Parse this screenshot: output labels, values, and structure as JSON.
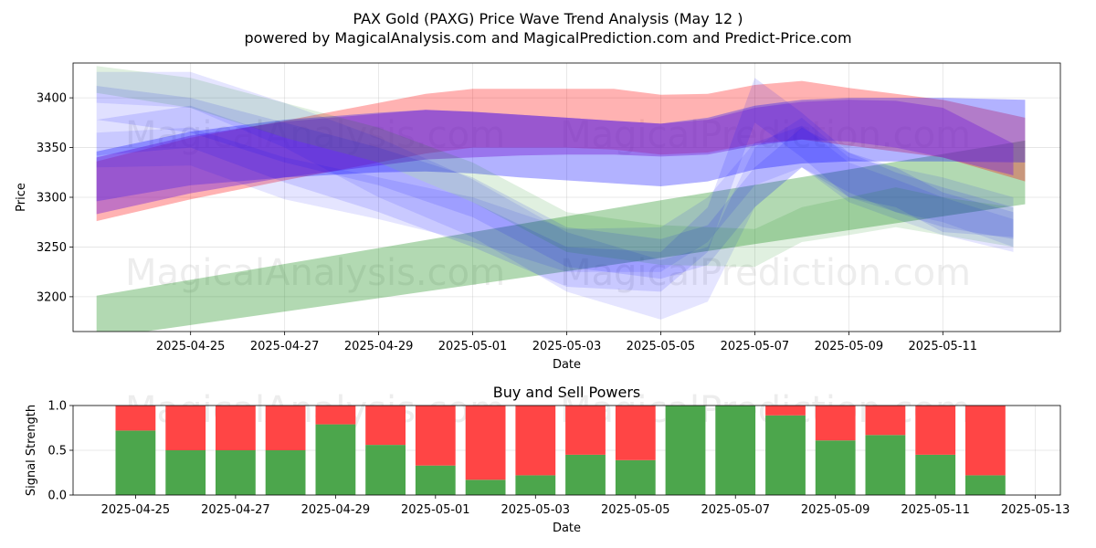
{
  "title_line1": "PAX Gold (PAXG) Price Wave Trend Analysis (May 12 )",
  "title_line2": "powered by MagicalAnalysis.com and MagicalPrediction.com and Predict-Price.com",
  "watermarks": [
    "MagicalAnalysis.com",
    "MagicalPrediction.com"
  ],
  "chart_data": [
    {
      "type": "area",
      "xlabel": "Date",
      "ylabel": "Price",
      "ylim": [
        3165,
        3435
      ],
      "xlim": [
        "2025-04-22T12:00",
        "2025-05-13T12:00"
      ],
      "yticks": [
        3200,
        3250,
        3300,
        3350,
        3400
      ],
      "xticks": [
        "2025-04-25",
        "2025-04-27",
        "2025-04-29",
        "2025-05-01",
        "2025-05-03",
        "2025-05-05",
        "2025-05-07",
        "2025-05-09",
        "2025-05-11"
      ],
      "grid": true,
      "colors": {
        "red": "#ff0000",
        "green": "#008000",
        "blue": "#0000ff",
        "purple": "#7a2bd6"
      },
      "bands": [
        {
          "color": "green",
          "opacity": 0.3,
          "x": [
            "2025-04-23",
            "2025-05-05",
            "2025-05-12T18:00"
          ],
          "upper": [
            3201,
            3297,
            3357
          ],
          "lower": [
            3158,
            3239,
            3293
          ]
        },
        {
          "color": "red",
          "opacity": 0.3,
          "x": [
            "2025-04-23",
            "2025-04-25",
            "2025-04-27",
            "2025-04-29",
            "2025-04-30",
            "2025-05-01",
            "2025-05-02",
            "2025-05-03",
            "2025-05-04",
            "2025-05-05",
            "2025-05-06",
            "2025-05-07",
            "2025-05-08",
            "2025-05-09",
            "2025-05-10",
            "2025-05-11",
            "2025-05-12T18:00"
          ],
          "upper": [
            3336,
            3360,
            3377,
            3395,
            3404,
            3409,
            3409,
            3409,
            3409,
            3403,
            3404,
            3413,
            3417,
            3410,
            3404,
            3398,
            3380
          ],
          "lower": [
            3276,
            3298,
            3317,
            3335,
            3344,
            3350,
            3350,
            3350,
            3348,
            3343,
            3345,
            3354,
            3358,
            3352,
            3346,
            3340,
            3316
          ]
        },
        {
          "color": "blue",
          "opacity": 0.3,
          "x": [
            "2025-04-23",
            "2025-04-25",
            "2025-04-27",
            "2025-04-29",
            "2025-04-30",
            "2025-05-01",
            "2025-05-02",
            "2025-05-03",
            "2025-05-04",
            "2025-05-05",
            "2025-05-06",
            "2025-05-07",
            "2025-05-08",
            "2025-05-09",
            "2025-05-10",
            "2025-05-11",
            "2025-05-12T18:00"
          ],
          "upper": [
            3346,
            3366,
            3378,
            3385,
            3388,
            3386,
            3383,
            3380,
            3377,
            3374,
            3380,
            3392,
            3398,
            3400,
            3400,
            3400,
            3398
          ],
          "lower": [
            3296,
            3312,
            3320,
            3325,
            3326,
            3324,
            3320,
            3317,
            3314,
            3311,
            3316,
            3328,
            3334,
            3336,
            3336,
            3336,
            3335
          ]
        },
        {
          "color": "purple",
          "opacity": 0.45,
          "x": [
            "2025-04-23",
            "2025-04-25",
            "2025-04-27",
            "2025-04-29",
            "2025-04-30",
            "2025-05-01",
            "2025-05-02",
            "2025-05-03",
            "2025-05-04",
            "2025-05-05",
            "2025-05-06",
            "2025-05-07",
            "2025-05-08",
            "2025-05-09",
            "2025-05-10",
            "2025-05-11",
            "2025-05-12T12:00"
          ],
          "upper": [
            3340,
            3362,
            3376,
            3384,
            3388,
            3386,
            3383,
            3380,
            3377,
            3374,
            3378,
            3390,
            3396,
            3398,
            3397,
            3390,
            3354
          ],
          "lower": [
            3283,
            3304,
            3320,
            3332,
            3338,
            3340,
            3342,
            3343,
            3343,
            3341,
            3343,
            3352,
            3358,
            3356,
            3350,
            3340,
            3322
          ]
        },
        {
          "color": "blue",
          "opacity": 0.1,
          "x": [
            "2025-04-23",
            "2025-04-25",
            "2025-04-27",
            "2025-04-29",
            "2025-05-01",
            "2025-05-03",
            "2025-05-05",
            "2025-05-06",
            "2025-05-07",
            "2025-05-08",
            "2025-05-09",
            "2025-05-10",
            "2025-05-11",
            "2025-05-12T12:00"
          ],
          "upper": [
            3426,
            3426,
            3395,
            3360,
            3318,
            3265,
            3237,
            3250,
            3350,
            3380,
            3340,
            3330,
            3320,
            3300
          ],
          "lower": [
            3395,
            3390,
            3350,
            3300,
            3260,
            3205,
            3177,
            3195,
            3290,
            3330,
            3300,
            3285,
            3275,
            3250
          ]
        },
        {
          "color": "blue",
          "opacity": 0.12,
          "x": [
            "2025-04-23",
            "2025-04-25",
            "2025-04-27",
            "2025-04-29",
            "2025-05-01",
            "2025-05-03",
            "2025-05-05",
            "2025-05-06",
            "2025-05-07",
            "2025-05-08",
            "2025-05-09",
            "2025-05-10",
            "2025-05-11",
            "2025-05-12T12:00"
          ],
          "upper": [
            3378,
            3392,
            3360,
            3335,
            3295,
            3250,
            3245,
            3290,
            3420,
            3385,
            3345,
            3330,
            3305,
            3285
          ],
          "lower": [
            3342,
            3350,
            3315,
            3285,
            3250,
            3210,
            3205,
            3245,
            3375,
            3340,
            3300,
            3290,
            3265,
            3260
          ]
        },
        {
          "color": "blue",
          "opacity": 0.12,
          "x": [
            "2025-04-23",
            "2025-04-25",
            "2025-04-27",
            "2025-04-29",
            "2025-05-01",
            "2025-05-03",
            "2025-05-05",
            "2025-05-06",
            "2025-05-07",
            "2025-05-08",
            "2025-05-09",
            "2025-05-10",
            "2025-05-11",
            "2025-05-12T12:00"
          ],
          "upper": [
            3412,
            3400,
            3375,
            3350,
            3320,
            3270,
            3258,
            3272,
            3330,
            3370,
            3345,
            3325,
            3310,
            3290
          ],
          "lower": [
            3378,
            3365,
            3335,
            3312,
            3280,
            3230,
            3218,
            3232,
            3290,
            3330,
            3305,
            3285,
            3270,
            3258
          ]
        },
        {
          "color": "blue",
          "opacity": 0.1,
          "x": [
            "2025-04-23",
            "2025-04-25",
            "2025-04-27",
            "2025-04-29",
            "2025-05-01",
            "2025-05-03",
            "2025-05-05",
            "2025-05-06",
            "2025-05-07",
            "2025-05-08",
            "2025-05-09",
            "2025-05-10",
            "2025-05-11",
            "2025-05-12T12:00"
          ],
          "upper": [
            3365,
            3370,
            3340,
            3320,
            3300,
            3268,
            3270,
            3300,
            3355,
            3372,
            3335,
            3318,
            3300,
            3278
          ],
          "lower": [
            3330,
            3332,
            3298,
            3278,
            3255,
            3225,
            3225,
            3255,
            3312,
            3330,
            3295,
            3278,
            3262,
            3245
          ]
        },
        {
          "color": "green",
          "opacity": 0.12,
          "x": [
            "2025-04-23",
            "2025-04-25",
            "2025-04-27",
            "2025-04-29",
            "2025-05-01",
            "2025-05-03",
            "2025-05-05",
            "2025-05-07",
            "2025-05-08",
            "2025-05-09",
            "2025-05-10",
            "2025-05-11",
            "2025-05-12T12:00"
          ],
          "upper": [
            3432,
            3420,
            3395,
            3370,
            3335,
            3285,
            3272,
            3268,
            3290,
            3300,
            3310,
            3300,
            3290
          ],
          "lower": [
            3405,
            3390,
            3360,
            3335,
            3295,
            3245,
            3232,
            3230,
            3255,
            3262,
            3270,
            3262,
            3250
          ]
        }
      ]
    },
    {
      "type": "bar",
      "stacked": true,
      "title": "Buy and Sell Powers",
      "xlabel": "Date",
      "ylabel": "Signal Strength",
      "ylim": [
        0,
        1
      ],
      "yticks": [
        "0.0",
        "0.5",
        "1.0"
      ],
      "xticks": [
        "2025-04-25",
        "2025-04-27",
        "2025-04-29",
        "2025-05-01",
        "2025-05-03",
        "2025-05-05",
        "2025-05-07",
        "2025-05-09",
        "2025-05-11",
        "2025-05-13"
      ],
      "xlim": [
        "2025-04-23T18:00",
        "2025-05-13T12:00"
      ],
      "grid": true,
      "colors": {
        "buy": "#4ca64c",
        "sell": "#ff4545"
      },
      "dates": [
        "2025-04-25",
        "2025-04-26",
        "2025-04-27",
        "2025-04-28",
        "2025-04-29",
        "2025-04-30",
        "2025-05-01",
        "2025-05-02",
        "2025-05-03",
        "2025-05-04",
        "2025-05-05",
        "2025-05-06",
        "2025-05-07",
        "2025-05-08",
        "2025-05-09",
        "2025-05-10",
        "2025-05-11",
        "2025-05-12"
      ],
      "buy": [
        0.72,
        0.5,
        0.5,
        0.5,
        0.79,
        0.56,
        0.33,
        0.17,
        0.22,
        0.45,
        0.39,
        1.0,
        1.0,
        0.89,
        0.61,
        0.67,
        0.45,
        0.22
      ]
    }
  ]
}
